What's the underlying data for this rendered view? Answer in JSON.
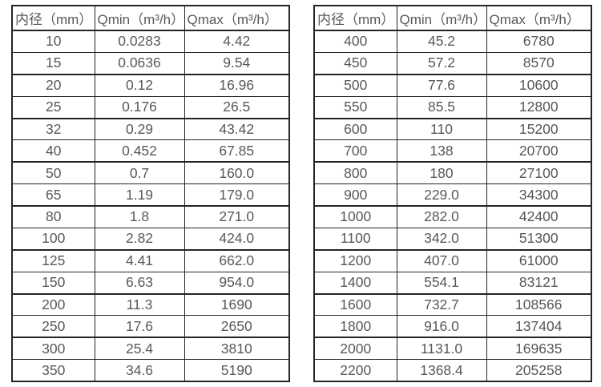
{
  "colors": {
    "background": "#ffffff",
    "text": "#58585a",
    "border": "#242424"
  },
  "tables": [
    {
      "name": "diameter-flow-table-small",
      "headers": [
        "内径（mm）",
        "Qmin（m³/h）",
        "Qmax（m³/h）"
      ],
      "rows": [
        [
          "10",
          "0.0283",
          "4.42"
        ],
        [
          "15",
          "0.0636",
          "9.54"
        ],
        [
          "20",
          "0.12",
          "16.96"
        ],
        [
          "25",
          "0.176",
          "26.5"
        ],
        [
          "32",
          "0.29",
          "43.42"
        ],
        [
          "40",
          "0.452",
          "67.85"
        ],
        [
          "50",
          "0.7",
          "160.0"
        ],
        [
          "65",
          "1.19",
          "179.0"
        ],
        [
          "80",
          "1.8",
          "271.0"
        ],
        [
          "100",
          "2.82",
          "424.0"
        ],
        [
          "125",
          "4.41",
          "662.0"
        ],
        [
          "150",
          "6.63",
          "954.0"
        ],
        [
          "200",
          "11.3",
          "1690"
        ],
        [
          "250",
          "17.6",
          "2650"
        ],
        [
          "300",
          "25.4",
          "3810"
        ],
        [
          "350",
          "34.6",
          "5190"
        ]
      ]
    },
    {
      "name": "diameter-flow-table-large",
      "headers": [
        "内径（mm）",
        "Qmin（m³/h）",
        "Qmax（m³/h）"
      ],
      "rows": [
        [
          "400",
          "45.2",
          "6780"
        ],
        [
          "450",
          "57.2",
          "8570"
        ],
        [
          "500",
          "77.6",
          "10600"
        ],
        [
          "550",
          "85.5",
          "12800"
        ],
        [
          "600",
          "110",
          "15200"
        ],
        [
          "700",
          "138",
          "20700"
        ],
        [
          "800",
          "180",
          "27100"
        ],
        [
          "900",
          "229.0",
          "34300"
        ],
        [
          "1000",
          "282.0",
          "42400"
        ],
        [
          "1100",
          "342.0",
          "51300"
        ],
        [
          "1200",
          "407.0",
          "61000"
        ],
        [
          "1400",
          "554.1",
          "83121"
        ],
        [
          "1600",
          "732.7",
          "108566"
        ],
        [
          "1800",
          "916.0",
          "137404"
        ],
        [
          "2000",
          "1131.0",
          "169635"
        ],
        [
          "2200",
          "1368.4",
          "205258"
        ]
      ]
    }
  ]
}
